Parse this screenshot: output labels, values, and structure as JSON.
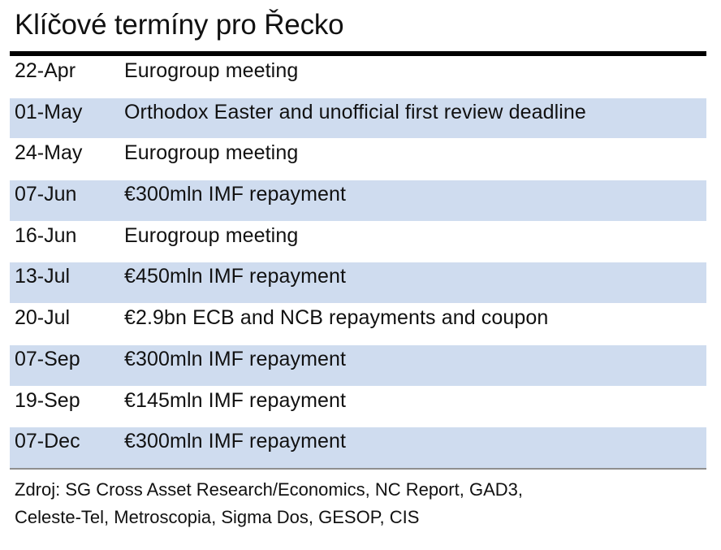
{
  "title": "Klíčové termíny pro Řecko",
  "rows": [
    {
      "date": "22-Apr",
      "event": "Eurogroup meeting"
    },
    {
      "date": "01-May",
      "event": "Orthodox Easter and unofficial first review deadline"
    },
    {
      "date": "24-May",
      "event": "Eurogroup meeting"
    },
    {
      "date": "07-Jun",
      "event": "€300mln IMF repayment"
    },
    {
      "date": "16-Jun",
      "event": "Eurogroup meeting"
    },
    {
      "date": "13-Jul",
      "event": "€450mln IMF repayment"
    },
    {
      "date": "20-Jul",
      "event": "€2.9bn ECB and NCB repayments and coupon"
    },
    {
      "date": "07-Sep",
      "event": "€300mln IMF repayment"
    },
    {
      "date": "19-Sep",
      "event": "€145mln IMF repayment"
    },
    {
      "date": "07-Dec",
      "event": "€300mln IMF repayment"
    }
  ],
  "source": {
    "line1": "Zdroj:  SG Cross Asset Research/Economics, NC Report, GAD3,",
    "line2": "Celeste-Tel, Metroscopia, Sigma Dos, GESOP, CIS"
  },
  "colors": {
    "row_shade": "#cfdcef",
    "rule": "#000000",
    "bottom_rule": "#8f8f8f"
  }
}
